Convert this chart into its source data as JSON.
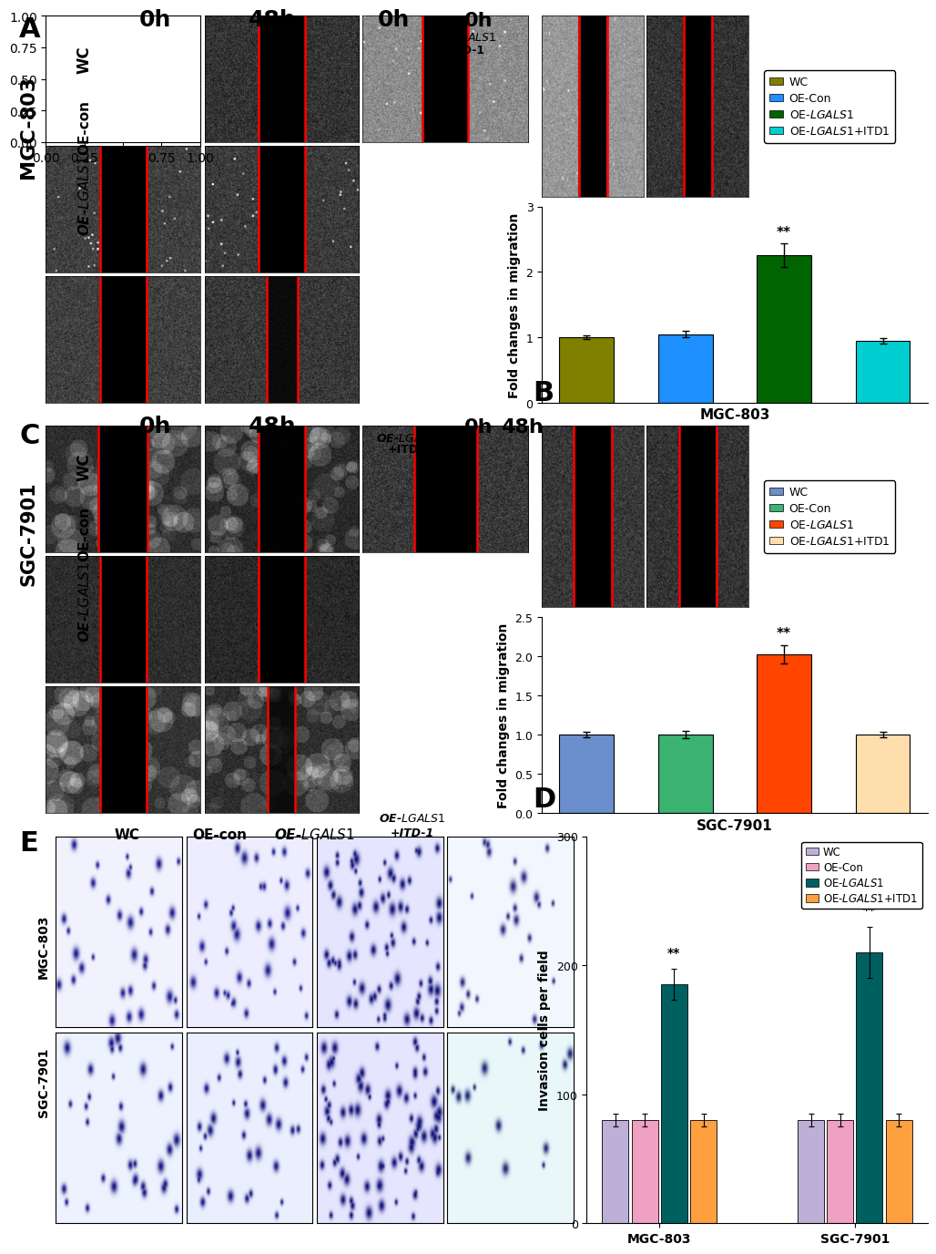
{
  "panel_B": {
    "categories": [
      "WC",
      "OE-Con",
      "OE-LGALS1",
      "OE-LGALS1+ITD1"
    ],
    "values": [
      1.0,
      1.05,
      2.25,
      0.95
    ],
    "errors": [
      0.03,
      0.05,
      0.18,
      0.04
    ],
    "colors": [
      "#808000",
      "#1E90FF",
      "#006400",
      "#00CED1"
    ],
    "ylabel": "Fold changes in migration",
    "xlabel": "MGC-803",
    "ylim": [
      0,
      3.0
    ],
    "yticks": [
      0,
      1,
      2,
      3
    ],
    "sig_bar": 2,
    "sig_text": "**",
    "sig_color": "#1E90FF"
  },
  "panel_D": {
    "categories": [
      "WC",
      "OE-Con",
      "OE-LGALS1",
      "OE-LGALS1+ITD1"
    ],
    "values": [
      1.0,
      1.0,
      2.02,
      1.0
    ],
    "errors": [
      0.04,
      0.05,
      0.12,
      0.04
    ],
    "colors": [
      "#6B8ECC",
      "#3CB371",
      "#FF4500",
      "#FFDEAD"
    ],
    "ylabel": "Fold changes in migration",
    "xlabel": "SGC-7901",
    "ylim": [
      0.0,
      2.5
    ],
    "yticks": [
      0.0,
      0.5,
      1.0,
      1.5,
      2.0,
      2.5
    ],
    "sig_bar": 2,
    "sig_text": "**",
    "sig_color": "#FF4500"
  },
  "panel_E": {
    "groups": [
      "MGC-803",
      "SGC-7901"
    ],
    "categories": [
      "WC",
      "OE-Con",
      "OE-LGALS1",
      "OE-LGALS1+ITD1"
    ],
    "values": [
      [
        80,
        80,
        185,
        80
      ],
      [
        80,
        80,
        210,
        80
      ]
    ],
    "errors": [
      [
        5,
        5,
        12,
        5
      ],
      [
        5,
        5,
        20,
        5
      ]
    ],
    "colors": [
      "#BDB0D8",
      "#F0A0C0",
      "#006060",
      "#FFA040"
    ],
    "ylabel": "Invasion cells per field",
    "ylim": [
      0,
      300
    ],
    "yticks": [
      0,
      100,
      200,
      300
    ],
    "sig_bars": [
      {
        "group": 0,
        "bar": 2,
        "text": "**"
      },
      {
        "group": 1,
        "bar": 2,
        "text": "**"
      }
    ],
    "sig_color": "#006060"
  },
  "legend_B": {
    "labels": [
      "WC",
      "OE-Con",
      "OE-LGALS1",
      "OE-LGALS1+ITD1"
    ],
    "colors": [
      "#808000",
      "#1E90FF",
      "#006400",
      "#00CED1"
    ]
  },
  "legend_D": {
    "labels": [
      "WC",
      "OE-Con",
      "OE-LGALS1",
      "OE-LGALS1+ITD1"
    ],
    "colors": [
      "#6B8ECC",
      "#3CB371",
      "#FF4500",
      "#FFDEAD"
    ]
  },
  "legend_E": {
    "labels": [
      "WC",
      "OE-Con",
      "OE-LGALS1",
      "OE-LGALS1+ITD1"
    ],
    "colors": [
      "#BDB0D8",
      "#F0A0C0",
      "#006060",
      "#FFA040"
    ]
  },
  "figure_bg": "#ffffff",
  "panel_label_fontsize": 22,
  "axis_label_fontsize": 10,
  "tick_fontsize": 9,
  "legend_fontsize": 9,
  "header_fontsize": 18,
  "rowlabel_fontsize": 12,
  "side_label_fontsize": 16,
  "bar_width": 0.55,
  "group_bar_width": 0.15
}
